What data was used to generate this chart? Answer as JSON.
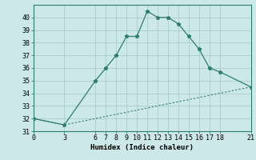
{
  "xlabel": "Humidex (Indice chaleur)",
  "line1_x": [
    0,
    3,
    6,
    7,
    8,
    9,
    10,
    11,
    12,
    13,
    14,
    15,
    16,
    17,
    18,
    21
  ],
  "line1_y": [
    32,
    31.5,
    35,
    36,
    37,
    38.5,
    38.5,
    40.5,
    40,
    40,
    39.5,
    38.5,
    37.5,
    36,
    35.7,
    34.5
  ],
  "line2_x": [
    0,
    3,
    21
  ],
  "line2_y": [
    32,
    31.5,
    34.5
  ],
  "line_color": "#2e7d6e",
  "bg_color": "#cce8e8",
  "grid_color": "#aed0d0",
  "xlim": [
    0,
    21
  ],
  "ylim": [
    31,
    41
  ],
  "xticks": [
    0,
    3,
    6,
    7,
    8,
    9,
    10,
    11,
    12,
    13,
    14,
    15,
    16,
    17,
    18,
    21
  ],
  "yticks": [
    31,
    32,
    33,
    34,
    35,
    36,
    37,
    38,
    39,
    40
  ],
  "axis_fontsize": 6.5,
  "tick_fontsize": 6.0
}
